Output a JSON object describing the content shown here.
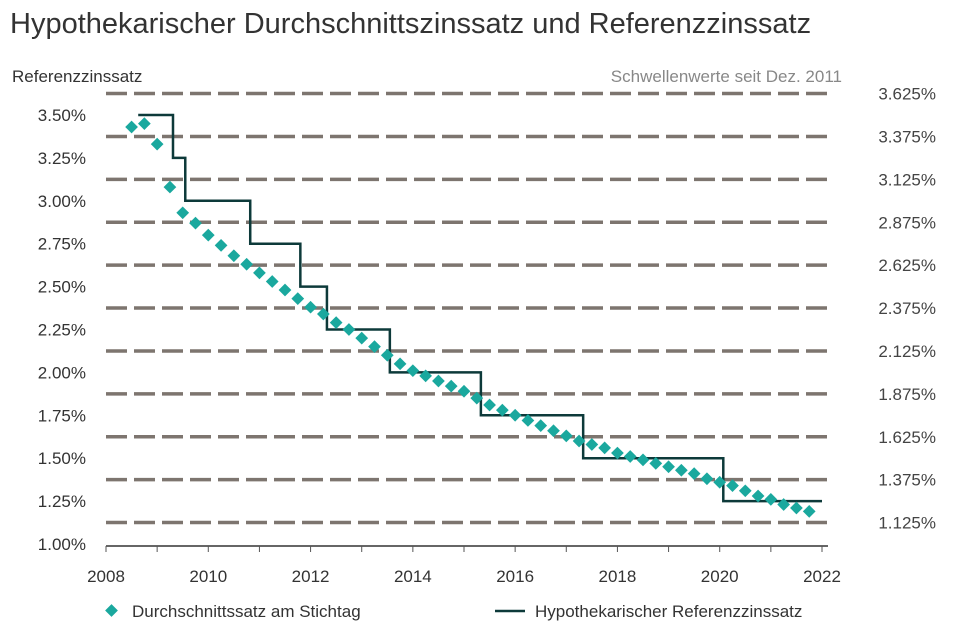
{
  "chart_data": {
    "type": "line",
    "title": "Hypothekarischer Durchschnittszinssatz und Referenzzinssatz",
    "ylabel": "Referenzzinssatz",
    "right_axis_title": "Schwellenwerte seit Dez. 2011",
    "xlim": [
      2008,
      2022
    ],
    "ylim": [
      1.0,
      3.6
    ],
    "x_ticks": [
      "2008",
      "2010",
      "2012",
      "2014",
      "2016",
      "2018",
      "2020",
      "2022"
    ],
    "y_ticks": [
      "3.50%",
      "3.25%",
      "3.00%",
      "2.75%",
      "2.50%",
      "2.25%",
      "2.00%",
      "1.75%",
      "1.50%",
      "1.25%",
      "1.00%"
    ],
    "thresholds": [
      {
        "value": 3.625,
        "label": "3.625%"
      },
      {
        "value": 3.375,
        "label": "3.375%"
      },
      {
        "value": 3.125,
        "label": "3.125%"
      },
      {
        "value": 2.875,
        "label": "2.875%"
      },
      {
        "value": 2.625,
        "label": "2.625%"
      },
      {
        "value": 2.375,
        "label": "2.375%"
      },
      {
        "value": 2.125,
        "label": "2.125%"
      },
      {
        "value": 1.875,
        "label": "1.875%"
      },
      {
        "value": 1.625,
        "label": "1.625%"
      },
      {
        "value": 1.375,
        "label": "1.375%"
      },
      {
        "value": 1.125,
        "label": "1.125%"
      }
    ],
    "grid": "dashed threshold lines",
    "legend_position": "bottom",
    "series": [
      {
        "name": "Durchschnittssatz am Stichtag",
        "style": "diamond-markers",
        "color": "#1aa89e",
        "x": [
          2008.5,
          2008.75,
          2009,
          2009.25,
          2009.5,
          2009.75,
          2010,
          2010.25,
          2010.5,
          2010.75,
          2011,
          2011.25,
          2011.5,
          2011.75,
          2012,
          2012.25,
          2012.5,
          2012.75,
          2013,
          2013.25,
          2013.5,
          2013.75,
          2014,
          2014.25,
          2014.5,
          2014.75,
          2015,
          2015.25,
          2015.5,
          2015.75,
          2016,
          2016.25,
          2016.5,
          2016.75,
          2017,
          2017.25,
          2017.5,
          2017.75,
          2018,
          2018.25,
          2018.5,
          2018.75,
          2019,
          2019.25,
          2019.5,
          2019.75,
          2020,
          2020.25,
          2020.5,
          2020.75,
          2021,
          2021.25,
          2021.5,
          2021.75
        ],
        "y": [
          3.43,
          3.45,
          3.33,
          3.08,
          2.93,
          2.87,
          2.8,
          2.74,
          2.68,
          2.63,
          2.58,
          2.53,
          2.48,
          2.43,
          2.38,
          2.34,
          2.29,
          2.25,
          2.2,
          2.15,
          2.1,
          2.05,
          2.01,
          1.98,
          1.95,
          1.92,
          1.89,
          1.85,
          1.81,
          1.78,
          1.75,
          1.72,
          1.69,
          1.66,
          1.63,
          1.6,
          1.58,
          1.56,
          1.53,
          1.51,
          1.49,
          1.47,
          1.45,
          1.43,
          1.41,
          1.38,
          1.36,
          1.34,
          1.31,
          1.28,
          1.26,
          1.23,
          1.21,
          1.19
        ]
      },
      {
        "name": "Hypothekarischer Referenzzinssatz",
        "style": "step-line",
        "color": "#0d3a3a",
        "steps": [
          {
            "from": 2008.63,
            "to": 2009.31,
            "value": 3.5
          },
          {
            "from": 2009.31,
            "to": 2009.55,
            "value": 3.25
          },
          {
            "from": 2009.55,
            "to": 2010.82,
            "value": 3.0
          },
          {
            "from": 2010.82,
            "to": 2011.8,
            "value": 2.75
          },
          {
            "from": 2011.8,
            "to": 2012.32,
            "value": 2.5
          },
          {
            "from": 2012.32,
            "to": 2013.55,
            "value": 2.25
          },
          {
            "from": 2013.55,
            "to": 2015.33,
            "value": 2.0
          },
          {
            "from": 2015.33,
            "to": 2017.33,
            "value": 1.75
          },
          {
            "from": 2017.33,
            "to": 2020.07,
            "value": 1.5
          },
          {
            "from": 2020.07,
            "to": 2022.0,
            "value": 1.25
          }
        ]
      }
    ]
  }
}
